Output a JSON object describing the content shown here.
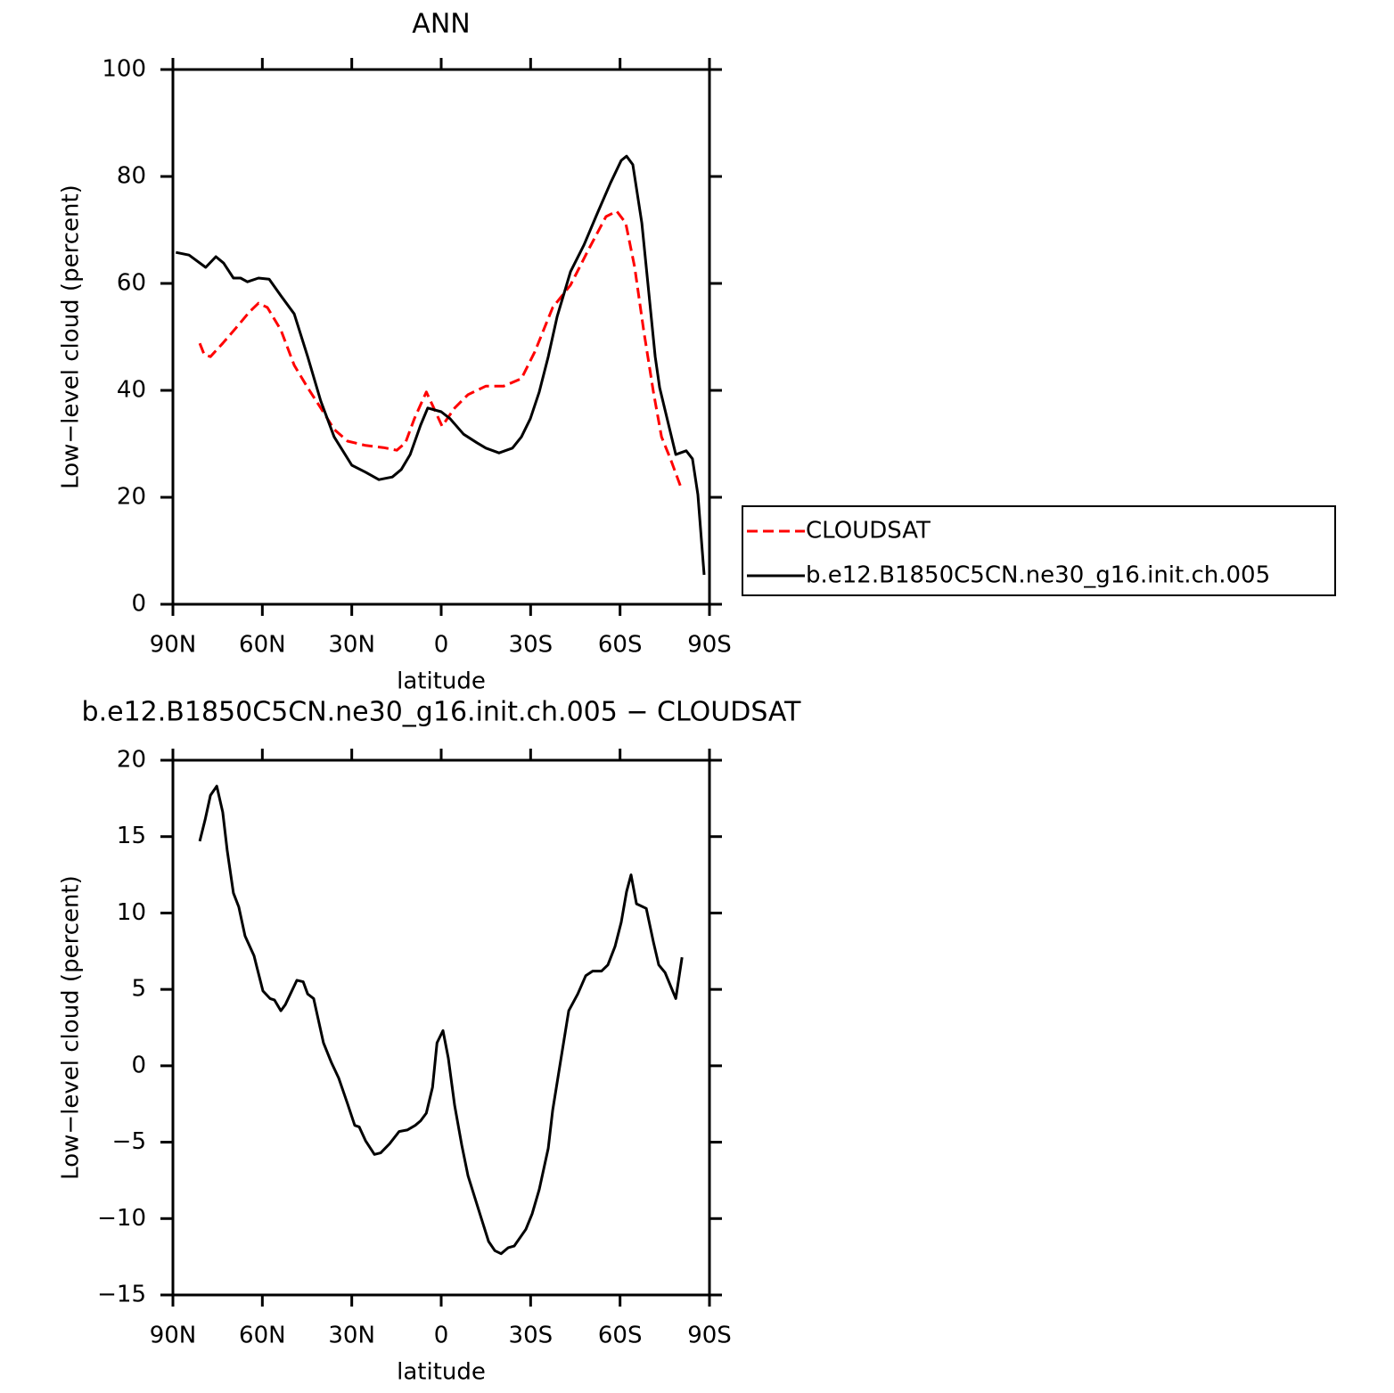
{
  "chart_data": [
    {
      "type": "line",
      "title": "ANN",
      "xlabel": "latitude",
      "ylabel": "Low−level cloud (percent)",
      "xlim": [
        90,
        -90
      ],
      "xticks": [
        {
          "value": 90,
          "label": "90N"
        },
        {
          "value": 60,
          "label": "60N"
        },
        {
          "value": 30,
          "label": "30N"
        },
        0,
        {
          "value": -30,
          "label": "30S"
        },
        {
          "value": -60,
          "label": "60S"
        },
        {
          "value": -90,
          "label": "90S"
        }
      ],
      "ylim": [
        0,
        100
      ],
      "yticks": [
        0,
        20,
        40,
        60,
        80,
        100
      ],
      "legend": "outside-right",
      "series": [
        {
          "name": "CLOUDSAT",
          "color": "#ff0000",
          "linestyle": "dashed",
          "x": [
            81,
            79.5,
            77.4,
            73.3,
            68.8,
            64.3,
            61.3,
            58.3,
            53.8,
            49.3,
            44.8,
            40.4,
            35.9,
            31.4,
            25.4,
            19.4,
            14.9,
            12,
            9,
            5,
            2.9,
            -0.3,
            -4.5,
            -9,
            -15,
            -21,
            -26.9,
            -31.4,
            -37.4,
            -43.4,
            -49.4,
            -55.3,
            -58.9,
            -61.9,
            -64.9,
            -67.9,
            -71.2,
            -73.9,
            -76.9,
            -80.8
          ],
          "values": [
            48.8,
            46.7,
            46.3,
            48.8,
            51.7,
            54.7,
            56.3,
            55.5,
            51.3,
            44.7,
            40.5,
            36.7,
            32.7,
            30.5,
            29.7,
            29.3,
            28.8,
            30.2,
            34.7,
            39.7,
            37.2,
            33.3,
            36.7,
            39.2,
            40.8,
            40.8,
            42.2,
            47.2,
            55.5,
            59.7,
            66.3,
            72.5,
            73.5,
            71.3,
            63,
            51.3,
            39.7,
            31.3,
            27.2,
            21.3
          ]
        },
        {
          "name": "b.e12.B1850C5CN.ne30_g16.init.ch.005",
          "color": "#000000",
          "linestyle": "solid",
          "x": [
            89,
            84.6,
            79,
            75.6,
            73,
            69.7,
            67.3,
            65,
            61.3,
            57.7,
            53.8,
            49.3,
            44.8,
            40.4,
            35.9,
            30,
            25.4,
            20.9,
            16.4,
            13.4,
            10.4,
            6.9,
            4.5,
            0,
            -3,
            -7.5,
            -12,
            -15,
            -19.4,
            -23.9,
            -26.9,
            -29.9,
            -32.9,
            -35.9,
            -38.9,
            -43.4,
            -47.9,
            -52.3,
            -56.8,
            -60.4,
            -62.2,
            -64.3,
            -67.3,
            -69.7,
            -71.8,
            -73.3,
            -78.7,
            -82.2,
            -84.3,
            -86.1,
            -88.2
          ],
          "values": [
            65.8,
            65.3,
            63,
            65,
            63.8,
            61,
            61,
            60.3,
            61,
            60.8,
            57.7,
            54.3,
            46.3,
            38,
            31.3,
            26,
            24.7,
            23.3,
            23.8,
            25.2,
            28,
            33.5,
            36.7,
            36,
            34.7,
            31.8,
            30.2,
            29.2,
            28.3,
            29.2,
            31.3,
            34.7,
            39.7,
            46.3,
            53.8,
            62.2,
            67.2,
            73,
            78.8,
            83,
            83.8,
            82.2,
            71.3,
            58,
            46.3,
            40.5,
            28,
            28.7,
            27.2,
            20.5,
            5.5
          ]
        }
      ]
    },
    {
      "type": "line",
      "title": "b.e12.B1850C5CN.ne30_g16.init.ch.005 − CLOUDSAT",
      "xlabel": "latitude",
      "ylabel": "Low−level cloud (percent)",
      "xlim": [
        90,
        -90
      ],
      "xticks": [
        {
          "value": 90,
          "label": "90N"
        },
        {
          "value": 60,
          "label": "60N"
        },
        {
          "value": 30,
          "label": "30N"
        },
        0,
        {
          "value": -30,
          "label": "30S"
        },
        {
          "value": -60,
          "label": "60S"
        },
        {
          "value": -90,
          "label": "90S"
        }
      ],
      "ylim": [
        -15,
        20
      ],
      "yticks": [
        {
          "value": -15,
          "label": "−15"
        },
        {
          "value": -10,
          "label": "−10"
        },
        {
          "value": -5,
          "label": "−5"
        },
        0,
        5,
        10,
        15,
        20
      ],
      "series": [
        {
          "color": "#000000",
          "linestyle": "solid",
          "x": [
            81,
            79.2,
            77.4,
            75.3,
            73.3,
            71.8,
            69.7,
            67.9,
            65.8,
            62.8,
            61.9,
            59.8,
            57.4,
            55.9,
            53.8,
            52.3,
            48.4,
            46.3,
            44.8,
            42.8,
            39.5,
            36.8,
            34.4,
            31.4,
            29,
            27.5,
            25.4,
            22.4,
            20.3,
            17.3,
            14.1,
            11.4,
            8.7,
            6.9,
            5,
            2.9,
            1.4,
            -0.6,
            -2.4,
            -4.5,
            -6.9,
            -9,
            -13.5,
            -15.9,
            -18,
            -20.1,
            -22.5,
            -24.5,
            -28.4,
            -30.5,
            -32.9,
            -35.9,
            -37.4,
            -39.8,
            -42.8,
            -45.8,
            -48.5,
            -50.8,
            -53.8,
            -55.9,
            -58.3,
            -60.4,
            -62.2,
            -63.7,
            -65.5,
            -68.8,
            -71.2,
            -73,
            -75.1,
            -78.7,
            -80.8
          ],
          "values": [
            14.7,
            16.1,
            17.7,
            18.3,
            16.6,
            14.1,
            11.3,
            10.4,
            8.5,
            7.2,
            6.5,
            4.9,
            4.4,
            4.3,
            3.6,
            4,
            5.6,
            5.5,
            4.7,
            4.4,
            1.5,
            0.2,
            -0.8,
            -2.5,
            -3.9,
            -4,
            -4.9,
            -5.8,
            -5.7,
            -5.1,
            -4.3,
            -4.2,
            -3.9,
            -3.6,
            -3.1,
            -1.4,
            1.5,
            2.3,
            0.5,
            -2.6,
            -5.2,
            -7.2,
            -10,
            -11.5,
            -12.1,
            -12.3,
            -11.9,
            -11.8,
            -10.7,
            -9.7,
            -8.1,
            -5.4,
            -2.9,
            0,
            3.6,
            4.7,
            5.9,
            6.2,
            6.2,
            6.6,
            7.8,
            9.4,
            11.4,
            12.5,
            10.6,
            10.3,
            8.1,
            6.6,
            6.1,
            4.4,
            7.1
          ]
        }
      ]
    }
  ]
}
